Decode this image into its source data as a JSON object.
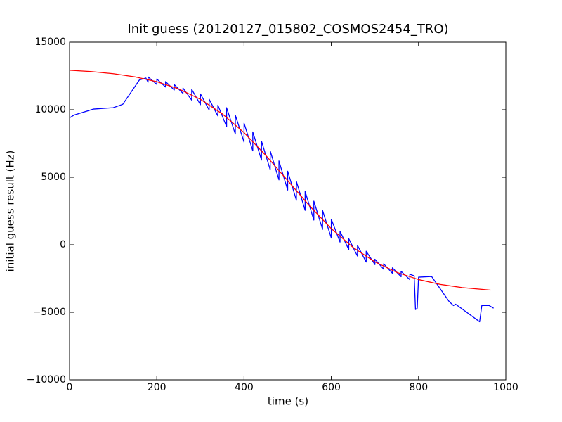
{
  "chart_data": {
    "type": "line",
    "title": "Init guess (20120127_015802_COSMOS2454_TRO)",
    "x_label": "time (s)",
    "y_label": "initial guess result (Hz)",
    "xlim": [
      0,
      1000
    ],
    "xticks": [
      0,
      200,
      400,
      600,
      800,
      1000
    ],
    "ylim": [
      -10000,
      15000
    ],
    "yticks": [
      {
        "value": -10000,
        "label": "−10000"
      },
      {
        "value": -5000,
        "label": "−5000"
      },
      0,
      5000,
      10000,
      15000
    ],
    "grid": false,
    "series": [
      {
        "color": "#0000ff",
        "x": [
          0,
          10,
          25,
          55,
          100,
          122,
          160,
          175,
          180,
          180,
          200,
          200,
          220,
          220,
          240,
          240,
          260,
          260,
          280,
          280,
          300,
          300,
          320,
          320,
          340,
          340,
          360,
          360,
          380,
          380,
          400,
          400,
          420,
          420,
          440,
          440,
          460,
          460,
          480,
          480,
          500,
          500,
          520,
          520,
          540,
          540,
          560,
          560,
          580,
          580,
          600,
          600,
          620,
          620,
          640,
          640,
          660,
          660,
          680,
          680,
          700,
          700,
          720,
          720,
          740,
          740,
          760,
          760,
          780,
          780,
          790,
          793,
          797,
          800,
          830,
          870,
          880,
          885,
          940,
          945,
          962,
          972
        ],
        "values": [
          9400,
          9600,
          9750,
          10050,
          10150,
          10400,
          12200,
          12350,
          12037,
          12437,
          11875,
          12275,
          11685,
          12085,
          11464,
          11864,
          11207,
          11607,
          10710,
          11510,
          10373,
          11173,
          9978,
          10778,
          9540,
          10340,
          8747,
          10147,
          8200,
          9600,
          7604,
          9004,
          6958,
          8358,
          6270,
          7670,
          5553,
          6953,
          4807,
          6207,
          4050,
          5450,
          3292,
          4692,
          2547,
          3947,
          1829,
          3229,
          1142,
          2542,
          496,
          1896,
          199,
          999,
          -347,
          453,
          -840,
          -40,
          -1278,
          -478,
          -1468,
          -1068,
          -1809,
          -1409,
          -2107,
          -1707,
          -2364,
          -1964,
          -2585,
          -2185,
          -2300,
          -4800,
          -4700,
          -2400,
          -2350,
          -4200,
          -4500,
          -4400,
          -5700,
          -4500,
          -4500,
          -4700
        ]
      },
      {
        "color": "#ff0000",
        "x": [
          0,
          50,
          100,
          150,
          200,
          250,
          300,
          350,
          400,
          450,
          500,
          550,
          600,
          650,
          700,
          750,
          800,
          850,
          900,
          965
        ],
        "values": [
          12924,
          12826,
          12670,
          12435,
          12075,
          11541,
          10773,
          9699,
          8304,
          6615,
          4750,
          2885,
          1196,
          -199,
          -1268,
          -2041,
          -2575,
          -2935,
          -3171,
          -3360
        ]
      }
    ]
  }
}
